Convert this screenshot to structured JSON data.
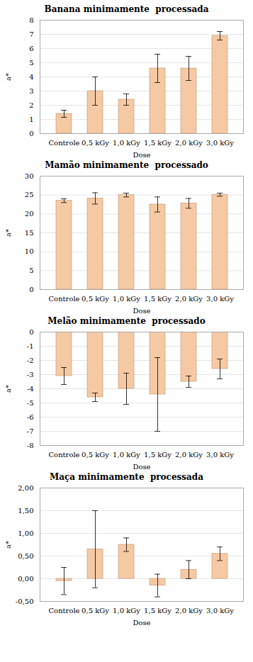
{
  "chart_data": [
    {
      "type": "bar",
      "title": "Banana minimamente  processada",
      "xlabel": "Dose",
      "ylabel": "a*",
      "categories": [
        "Controle",
        "0,5 kGy",
        "1,0 kGy",
        "1,5 kGy",
        "2,0 kGy",
        "3,0 kGy"
      ],
      "values": [
        1.4,
        3.0,
        2.4,
        4.6,
        4.6,
        6.9
      ],
      "errors": [
        0.25,
        1.0,
        0.4,
        1.0,
        0.85,
        0.3
      ],
      "ylim": [
        0,
        8
      ],
      "yticks": [
        0,
        1,
        2,
        3,
        4,
        5,
        6,
        7,
        8
      ],
      "grid": true,
      "color": "#F5C9A3"
    },
    {
      "type": "bar",
      "title": "Mamão minimamente  processado",
      "xlabel": "Dose",
      "ylabel": "a*",
      "categories": [
        "Controle",
        "0,5 kGy",
        "1,0 kGy",
        "1,5 kGy",
        "2,0 kGy",
        "3,0 kGy"
      ],
      "values": [
        23.5,
        24.1,
        25.0,
        22.5,
        22.8,
        25.1
      ],
      "errors": [
        0.5,
        1.5,
        0.5,
        2.0,
        1.3,
        0.4
      ],
      "ylim": [
        0,
        30
      ],
      "yticks": [
        0,
        5,
        10,
        15,
        20,
        25,
        30
      ],
      "grid": true,
      "color": "#F5C9A3"
    },
    {
      "type": "bar",
      "title": "Melão minimamente  processado",
      "xlabel": "Dose",
      "ylabel": "a*",
      "categories": [
        "Controle",
        "0,5 kGy",
        "1,0 kGy",
        "1,5 kGy",
        "2,0 kGy",
        "3,0 kGy"
      ],
      "values": [
        -3.1,
        -4.6,
        -4.0,
        -4.4,
        -3.5,
        -2.6
      ],
      "errors": [
        0.6,
        0.3,
        1.1,
        2.6,
        0.4,
        0.7
      ],
      "ylim": [
        -8,
        0
      ],
      "yticks": [
        -8,
        -7,
        -6,
        -5,
        -4,
        -3,
        -2,
        -1,
        0
      ],
      "grid": true,
      "color": "#F5C9A3"
    },
    {
      "type": "bar",
      "title": "Maça minimamente  processada",
      "xlabel": "Dose",
      "ylabel": "a*",
      "categories": [
        "Controle",
        "0,5 kGy",
        "1,0 kGy",
        "1,5 kGy",
        "2,0 kGy",
        "3,0 kGy"
      ],
      "values": [
        -0.05,
        0.65,
        0.75,
        -0.15,
        0.2,
        0.55
      ],
      "errors": [
        0.3,
        0.85,
        0.15,
        0.25,
        0.2,
        0.15
      ],
      "ylim": [
        -0.5,
        2.0
      ],
      "yticks": [
        {
          "value": -0.5,
          "label": "-0,50"
        },
        {
          "value": 0,
          "label": "0,00"
        },
        {
          "value": 0.5,
          "label": "0,50"
        },
        {
          "value": 1.0,
          "label": "1,00"
        },
        {
          "value": 1.5,
          "label": "1,50"
        },
        {
          "value": 2.0,
          "label": "2,00"
        }
      ],
      "grid": true,
      "color": "#F5C9A3"
    }
  ]
}
